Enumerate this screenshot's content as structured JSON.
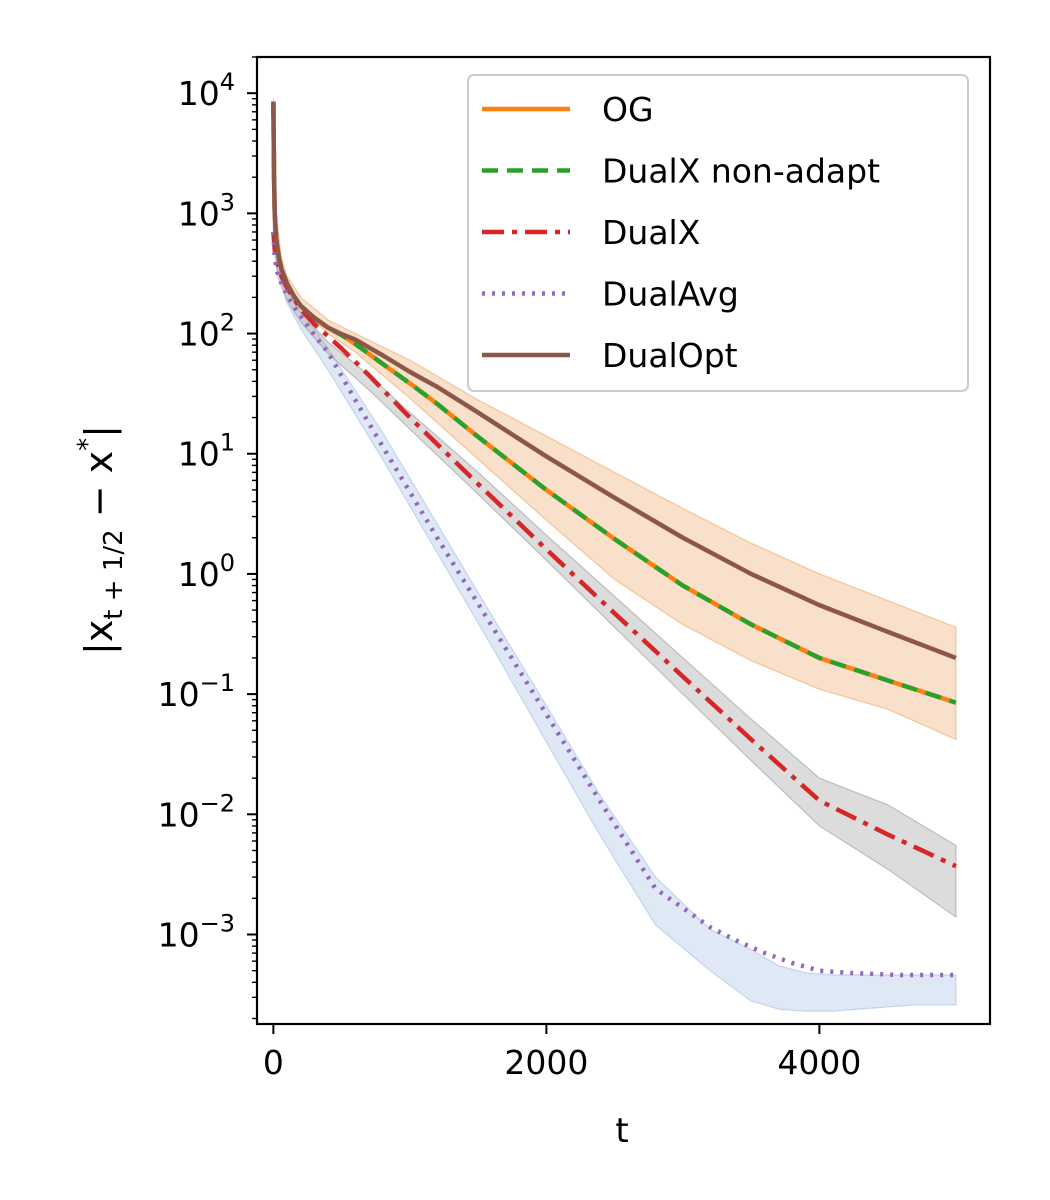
{
  "chart_data": {
    "type": "line",
    "xlabel": "t",
    "ylabel_base": "|x",
    "ylabel_sub": "t + 1/2",
    "ylabel_tail": " − x",
    "ylabel_sup": "*",
    "ylabel_close": "|",
    "xlim": [
      -120,
      5250
    ],
    "ylim": [
      0.00018,
      20000
    ],
    "yscale": "log",
    "xticks": [
      0,
      2000,
      4000
    ],
    "xtick_labels": [
      "0",
      "2000",
      "4000"
    ],
    "yticks": [
      0.001,
      0.01,
      0.1,
      1,
      10,
      100,
      1000,
      10000
    ],
    "ytick_base": "10",
    "ytick_exponents": [
      "−3",
      "−2",
      "−1",
      "0",
      "1",
      "2",
      "3",
      "4"
    ],
    "grid": false,
    "legend_position": "top-right",
    "bands": [
      {
        "color": "#aec7e8",
        "opacity": 0.4,
        "x": [
          0,
          30,
          100,
          200,
          400,
          800,
          1200,
          1600,
          2000,
          2400,
          2800,
          3200,
          3500,
          3700,
          3900,
          4100,
          4300,
          4500,
          4700,
          5000
        ],
        "lower": [
          600,
          300,
          180,
          110,
          50,
          9,
          1.5,
          0.25,
          0.04,
          0.0065,
          0.0012,
          0.0005,
          0.00028,
          0.00024,
          0.00023,
          0.00023,
          0.00024,
          0.00025,
          0.00026,
          0.00026
        ],
        "upper": [
          1000,
          420,
          230,
          160,
          75,
          15,
          2.6,
          0.45,
          0.08,
          0.014,
          0.003,
          0.0011,
          0.00075,
          0.00055,
          0.00048,
          0.00046,
          0.00046,
          0.00046,
          0.00046,
          0.00046
        ]
      },
      {
        "color": "#a8a8a8",
        "opacity": 0.4,
        "x": [
          0,
          30,
          100,
          200,
          400,
          700,
          1000,
          1500,
          2000,
          2500,
          3000,
          3500,
          4000,
          4500,
          5000
        ],
        "lower": [
          700,
          330,
          190,
          125,
          68,
          34,
          16,
          4.6,
          1.3,
          0.36,
          0.1,
          0.028,
          0.008,
          0.0035,
          0.0014
        ],
        "upper": [
          1000,
          400,
          230,
          150,
          85,
          45,
          22,
          7.0,
          2.1,
          0.65,
          0.2,
          0.062,
          0.02,
          0.012,
          0.0055
        ]
      },
      {
        "color": "#f0b27a",
        "opacity": 0.4,
        "x": [
          0,
          20,
          60,
          100,
          200,
          400,
          600,
          1000,
          1500,
          2000,
          2500,
          3000,
          3500,
          4000,
          4500,
          5000
        ],
        "lower": [
          8600,
          800,
          350,
          240,
          160,
          100,
          70,
          29,
          9,
          2.8,
          0.9,
          0.38,
          0.19,
          0.11,
          0.075,
          0.042
        ],
        "upper": [
          9000,
          1000,
          420,
          300,
          200,
          130,
          100,
          60,
          28,
          14,
          7,
          3.5,
          1.8,
          1.0,
          0.6,
          0.36
        ]
      }
    ],
    "series": [
      {
        "name": "OG",
        "color": "#ff7f0e",
        "dash": "",
        "width": 4.5,
        "x": [
          0,
          5,
          10,
          20,
          40,
          60,
          100,
          150,
          200,
          300,
          400,
          500,
          600,
          800,
          1000,
          1200,
          1500,
          2000,
          2500,
          3000,
          3500,
          4000,
          4500,
          5000
        ],
        "y": [
          8500,
          2000,
          1000,
          620,
          430,
          340,
          260,
          205,
          170,
          135,
          112,
          97,
          82,
          56,
          38.5,
          26,
          13.8,
          5.0,
          1.95,
          0.8,
          0.38,
          0.2,
          0.13,
          0.085
        ]
      },
      {
        "name": "DualX non-adapt",
        "color": "#2ca02c",
        "dash": "16,9",
        "width": 4.5,
        "x": [
          0,
          5,
          10,
          20,
          40,
          60,
          100,
          150,
          200,
          300,
          400,
          500,
          600,
          800,
          1000,
          1200,
          1500,
          2000,
          2500,
          3000,
          3500,
          4000,
          4500,
          5000
        ],
        "y": [
          8500,
          2000,
          1000,
          620,
          430,
          340,
          260,
          205,
          170,
          135,
          112,
          97,
          82,
          56,
          38.5,
          26,
          13.8,
          5.0,
          1.95,
          0.8,
          0.38,
          0.2,
          0.13,
          0.085
        ]
      },
      {
        "name": "DualX",
        "color": "#d62728",
        "dash": "22,8,5,8",
        "width": 4.5,
        "x": [
          0,
          10,
          30,
          60,
          100,
          150,
          200,
          300,
          400,
          500,
          700,
          1000,
          1500,
          2000,
          2500,
          3000,
          3500,
          4000,
          4500,
          5000
        ],
        "y": [
          700,
          500,
          380,
          300,
          240,
          195,
          160,
          120,
          95,
          75,
          45,
          20,
          5.6,
          1.6,
          0.47,
          0.14,
          0.042,
          0.013,
          0.0068,
          0.0037
        ]
      },
      {
        "name": "DualAvg",
        "color": "#9467bd",
        "dash": "3,7",
        "width": 4.5,
        "x": [
          0,
          10,
          30,
          60,
          100,
          150,
          200,
          300,
          400,
          600,
          800,
          1000,
          1200,
          1600,
          2000,
          2400,
          2800,
          3200,
          3400,
          3600,
          3800,
          4000,
          4200,
          4400,
          4600,
          4800,
          5000
        ],
        "y": [
          700,
          420,
          320,
          260,
          210,
          168,
          140,
          97,
          70,
          28,
          11.5,
          4.8,
          2.0,
          0.37,
          0.068,
          0.0125,
          0.0024,
          0.00115,
          0.00088,
          0.0007,
          0.00058,
          0.0005,
          0.00048,
          0.00047,
          0.00046,
          0.00046,
          0.00046
        ]
      },
      {
        "name": "DualOpt",
        "color": "#8c564b",
        "dash": "",
        "width": 4.5,
        "x": [
          0,
          5,
          10,
          20,
          40,
          60,
          100,
          150,
          200,
          300,
          400,
          500,
          600,
          800,
          1000,
          1200,
          1500,
          2000,
          2500,
          3000,
          3500,
          4000,
          4500,
          5000
        ],
        "y": [
          8500,
          2000,
          1000,
          620,
          430,
          340,
          260,
          205,
          170,
          135,
          112,
          99,
          89,
          66,
          48,
          36,
          22,
          9.5,
          4.3,
          2.0,
          1.0,
          0.55,
          0.33,
          0.2
        ]
      }
    ]
  }
}
